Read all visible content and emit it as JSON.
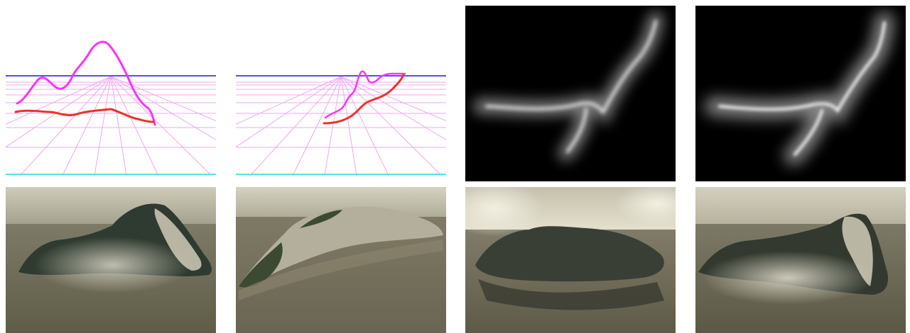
{
  "figure": {
    "rows": 2,
    "columns": 4,
    "top_row": [
      {
        "kind": "sketch",
        "description_icon": "perspective-grid-sketch"
      },
      {
        "kind": "sketch",
        "description_icon": "perspective-grid-sketch"
      },
      {
        "kind": "heightmap",
        "description_icon": "grayscale-heightmap"
      },
      {
        "kind": "heightmap",
        "description_icon": "grayscale-heightmap"
      }
    ],
    "bottom_row": [
      {
        "kind": "render",
        "description_icon": "terrain-render"
      },
      {
        "kind": "render",
        "description_icon": "terrain-render"
      },
      {
        "kind": "render",
        "description_icon": "terrain-render"
      },
      {
        "kind": "render",
        "description_icon": "terrain-render"
      }
    ]
  },
  "colors": {
    "horizon_line": "#5a4fe0",
    "grid_line": "#e88ae8",
    "silhouette_stroke": "#ff33ff",
    "base_stroke": "#e8342a",
    "ground_line": "#4fe6e6",
    "heightmap_bg": "#000000",
    "water": "#6b6a58",
    "sky": "#c9c6b4"
  }
}
